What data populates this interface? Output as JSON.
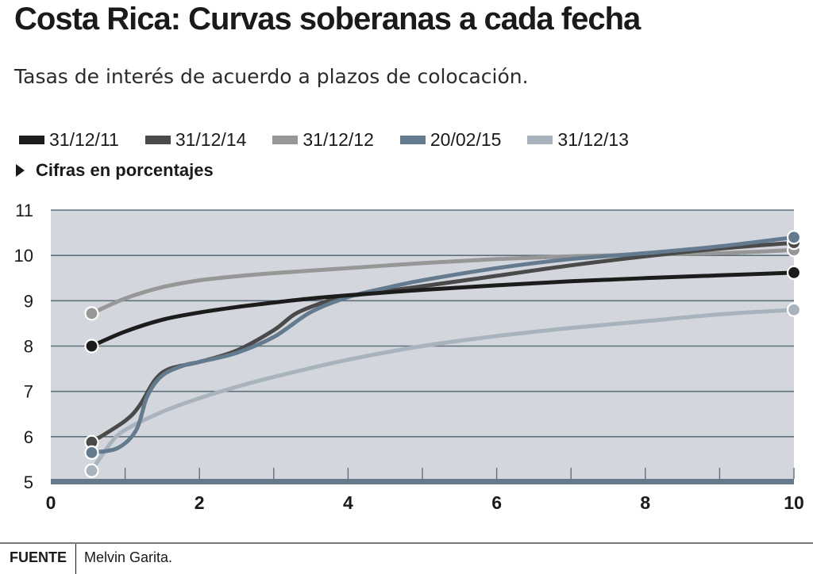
{
  "header": {
    "title": "Costa Rica: Curvas soberanas a cada fecha",
    "subtitle": "Tasas de interés de acuerdo a plazos de colocación."
  },
  "note": "Cifras en porcentajes",
  "footer": {
    "source_label": "FUENTE",
    "source_text": "Melvin Garita."
  },
  "colors": {
    "plot_background": "#d3d6dc",
    "gridline": "#5f6f7e",
    "baseline": "#65798a"
  },
  "chart_data": {
    "type": "line",
    "title": "Costa Rica: Curvas soberanas a cada fecha",
    "subtitle": "Tasas de interés de acuerdo a plazos de colocación.",
    "xlabel": "",
    "ylabel": "",
    "xlim": [
      0,
      10
    ],
    "ylim": [
      5,
      11
    ],
    "x_ticks": [
      0,
      2,
      4,
      6,
      8,
      10
    ],
    "y_ticks": [
      5,
      6,
      7,
      8,
      9,
      10,
      11
    ],
    "grid": true,
    "legend_position": "top-left",
    "series": [
      {
        "name": "31/12/11",
        "color": "#1c1c1c",
        "x": [
          0.55,
          1,
          1.5,
          2,
          2.5,
          3,
          3.5,
          4,
          5,
          6,
          7,
          8,
          9,
          10
        ],
        "y": [
          8.0,
          8.32,
          8.58,
          8.74,
          8.86,
          8.96,
          9.05,
          9.12,
          9.24,
          9.34,
          9.43,
          9.5,
          9.56,
          9.62
        ]
      },
      {
        "name": "31/12/14",
        "color": "#4a4a4a",
        "x": [
          0.55,
          1,
          1.2,
          1.4,
          1.6,
          2,
          2.5,
          3,
          3.3,
          3.7,
          4,
          5,
          6,
          7,
          8,
          9,
          10
        ],
        "y": [
          5.88,
          6.35,
          6.7,
          7.25,
          7.5,
          7.65,
          7.9,
          8.35,
          8.72,
          8.98,
          9.1,
          9.32,
          9.55,
          9.78,
          9.98,
          10.15,
          10.28
        ]
      },
      {
        "name": "31/12/12",
        "color": "#979797",
        "x": [
          0.55,
          1,
          1.5,
          2,
          2.5,
          3,
          4,
          5,
          6,
          7,
          8,
          9,
          10
        ],
        "y": [
          8.72,
          9.05,
          9.3,
          9.45,
          9.54,
          9.61,
          9.72,
          9.83,
          9.92,
          9.98,
          10.02,
          10.05,
          10.12
        ]
      },
      {
        "name": "20/02/15",
        "color": "#637a8f",
        "x": [
          0.55,
          0.9,
          1.15,
          1.3,
          1.5,
          1.8,
          2,
          2.5,
          3,
          3.5,
          4,
          4.5,
          5,
          6,
          7,
          8,
          9,
          10
        ],
        "y": [
          5.65,
          5.75,
          6.15,
          6.9,
          7.35,
          7.58,
          7.65,
          7.85,
          8.2,
          8.75,
          9.08,
          9.28,
          9.45,
          9.72,
          9.92,
          10.05,
          10.2,
          10.4
        ]
      },
      {
        "name": "31/12/13",
        "color": "#a9b3bd",
        "x": [
          0.55,
          0.8,
          1,
          1.5,
          2,
          2.5,
          3,
          4,
          5,
          6,
          7,
          8,
          9,
          10
        ],
        "y": [
          5.25,
          5.85,
          6.15,
          6.55,
          6.85,
          7.1,
          7.32,
          7.7,
          8.0,
          8.22,
          8.4,
          8.55,
          8.7,
          8.8
        ]
      }
    ]
  }
}
